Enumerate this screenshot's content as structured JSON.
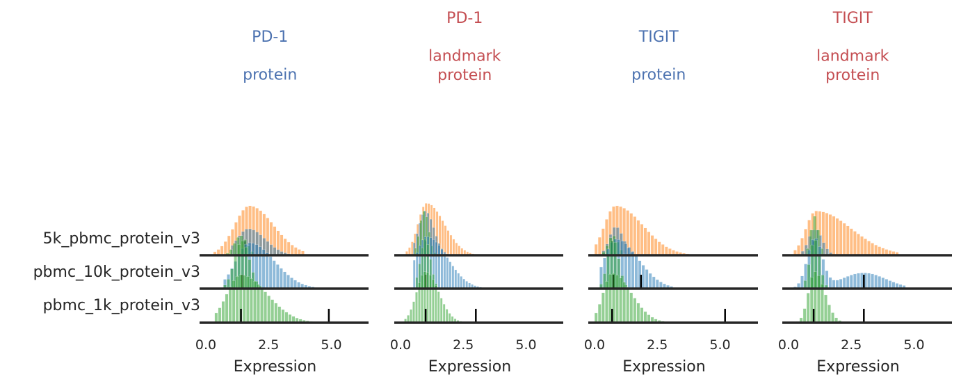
{
  "figure": {
    "row_labels": [
      "5k_pbmc_protein_v3",
      "pbmc_10k_protein_v3",
      "pbmc_1k_protein_v3"
    ],
    "colors": {
      "title_blue": "#4c72b0",
      "title_red": "#c44e52",
      "hist_orange": "#ff7f0e",
      "hist_blue": "#1f77b4",
      "hist_green": "#2ca02c",
      "baseline": "#262626",
      "marker": "#000000",
      "text": "#262626"
    }
  },
  "chart_data": [
    {
      "type": "histogram",
      "title_lines": [
        "PD-1",
        "",
        "protein"
      ],
      "title_color": "blue",
      "xlabel": "Expression",
      "xticks": [
        "0.0",
        "2.5",
        "5.0"
      ],
      "xlim": [
        -0.3,
        6.8
      ],
      "bin_width": 0.14,
      "series": [
        {
          "color": "orange",
          "row": 0,
          "mode": "gauss",
          "mu": 1.75,
          "sigma": 0.6,
          "lo": 0.3,
          "hi": 3.9,
          "peak": 0.95,
          "skew": 1.6,
          "marker_x": 1.55
        },
        {
          "color": "blue",
          "row": 0,
          "mode": "gauss",
          "mu": 1.7,
          "sigma": 0.45,
          "lo": 1.0,
          "hi": 3.3,
          "peak": 0.51,
          "skew": 1.5,
          "marker_x": null
        },
        {
          "color": "green",
          "row": 0,
          "mode": "gauss",
          "mu": 1.4,
          "sigma": 0.25,
          "lo": 0.8,
          "hi": 2.0,
          "peak": 0.38,
          "skew": 1.0,
          "marker_x": null
        },
        {
          "color": "blue",
          "row": 1,
          "mode": "gauss",
          "mu": 1.75,
          "sigma": 0.55,
          "lo": 0.7,
          "hi": 4.3,
          "peak": 0.88,
          "skew": 1.8,
          "marker_x": 1.45
        },
        {
          "color": "green",
          "row": 1,
          "mode": "gauss",
          "mu": 1.45,
          "sigma": 0.3,
          "lo": 0.7,
          "hi": 2.2,
          "peak": 0.92,
          "skew": 1.0,
          "marker_x": null
        },
        {
          "color": "green",
          "row": 2,
          "mode": "gauss",
          "mu": 1.4,
          "sigma": 0.55,
          "lo": 0.35,
          "hi": 5.1,
          "peak": 0.92,
          "skew": 1.9,
          "marker_x": 1.4
        }
      ],
      "outlier_markers": [
        {
          "row": 2,
          "x": 4.9
        }
      ]
    },
    {
      "type": "histogram",
      "title_lines": [
        "PD-1",
        "",
        "landmark",
        "protein"
      ],
      "title_color": "red",
      "xlabel": "Expression",
      "xticks": [
        "0.0",
        "2.5",
        "5.0"
      ],
      "xlim": [
        -0.3,
        6.8
      ],
      "bin_width": 0.11,
      "series": [
        {
          "color": "orange",
          "row": 0,
          "mode": "gauss",
          "mu": 1.05,
          "sigma": 0.35,
          "lo": 0.2,
          "hi": 3.1,
          "peak": 1.0,
          "skew": 2.0,
          "marker_x": 1.0
        },
        {
          "color": "blue",
          "row": 0,
          "mode": "gauss",
          "mu": 1.0,
          "sigma": 0.28,
          "lo": 0.5,
          "hi": 2.0,
          "peak": 0.85,
          "skew": 1.2,
          "marker_x": null
        },
        {
          "color": "green",
          "row": 0,
          "mode": "gauss",
          "mu": 0.95,
          "sigma": 0.18,
          "lo": 0.55,
          "hi": 1.6,
          "peak": 0.85,
          "skew": 1.0,
          "marker_x": null
        },
        {
          "color": "blue",
          "row": 1,
          "mode": "gauss",
          "mu": 1.05,
          "sigma": 0.45,
          "lo": 0.5,
          "hi": 3.2,
          "peak": 1.0,
          "skew": 1.8,
          "marker_x": 1.0
        },
        {
          "color": "green",
          "row": 1,
          "mode": "gauss",
          "mu": 1.0,
          "sigma": 0.2,
          "lo": 0.6,
          "hi": 1.7,
          "peak": 0.95,
          "skew": 1.0,
          "marker_x": null
        },
        {
          "color": "green",
          "row": 2,
          "mode": "gauss",
          "mu": 1.0,
          "sigma": 0.35,
          "lo": 0.15,
          "hi": 2.4,
          "peak": 0.98,
          "skew": 1.5,
          "marker_x": 1.0
        }
      ],
      "outlier_markers": [
        {
          "row": 2,
          "x": 3.0
        }
      ]
    },
    {
      "type": "histogram",
      "title_lines": [
        "TIGIT",
        "",
        "protein"
      ],
      "title_color": "blue",
      "xlabel": "Expression",
      "xticks": [
        "0.0",
        "2.5",
        "5.0"
      ],
      "xlim": [
        -0.3,
        6.8
      ],
      "bin_width": 0.14,
      "series": [
        {
          "color": "orange",
          "row": 0,
          "mode": "gauss",
          "mu": 0.85,
          "sigma": 0.45,
          "lo": 0.0,
          "hi": 3.9,
          "peak": 0.95,
          "skew": 2.4,
          "marker_x": 0.7
        },
        {
          "color": "blue",
          "row": 0,
          "mode": "gauss",
          "mu": 0.85,
          "sigma": 0.25,
          "lo": 0.3,
          "hi": 1.6,
          "peak": 0.55,
          "skew": 1.2,
          "marker_x": null
        },
        {
          "color": "green",
          "row": 0,
          "mode": "gauss",
          "mu": 0.75,
          "sigma": 0.2,
          "lo": 0.3,
          "hi": 1.3,
          "peak": 0.38,
          "skew": 1.0,
          "marker_x": null
        },
        {
          "color": "blue",
          "row": 1,
          "mode": "gauss",
          "mu": 0.85,
          "sigma": 0.45,
          "lo": 0.2,
          "hi": 3.1,
          "peak": 0.95,
          "skew": 2.0,
          "marker_x": 1.85
        },
        {
          "color": "green",
          "row": 1,
          "mode": "gauss",
          "mu": 0.75,
          "sigma": 0.22,
          "lo": 0.2,
          "hi": 1.3,
          "peak": 0.95,
          "skew": 1.0,
          "marker_x": 0.75
        },
        {
          "color": "green",
          "row": 2,
          "mode": "gauss",
          "mu": 0.7,
          "sigma": 0.35,
          "lo": 0.0,
          "hi": 3.5,
          "peak": 0.95,
          "skew": 2.2,
          "marker_x": 0.7
        }
      ],
      "outlier_markers": [
        {
          "row": 2,
          "x": 5.2
        }
      ]
    },
    {
      "type": "histogram",
      "title_lines": [
        "TIGIT",
        "",
        "landmark",
        "protein"
      ],
      "title_color": "red",
      "xlabel": "Expression",
      "xticks": [
        "0.0",
        "2.5",
        "5.0"
      ],
      "xlim": [
        -0.3,
        6.8
      ],
      "bin_width": 0.14,
      "series": [
        {
          "color": "orange",
          "row": 0,
          "mode": "gauss",
          "mu": 1.1,
          "sigma": 0.4,
          "lo": 0.2,
          "hi": 4.3,
          "peak": 0.85,
          "skew": 3.5,
          "marker_x": 1.0
        },
        {
          "color": "blue",
          "row": 0,
          "mode": "gauss",
          "mu": 1.05,
          "sigma": 0.25,
          "lo": 0.5,
          "hi": 1.7,
          "peak": 0.5,
          "skew": 1.2,
          "marker_x": null
        },
        {
          "color": "green",
          "row": 0,
          "mode": "gauss",
          "mu": 1.05,
          "sigma": 0.15,
          "lo": 0.7,
          "hi": 1.4,
          "peak": 0.75,
          "skew": 1.0,
          "marker_x": null
        },
        {
          "color": "blue",
          "row": 1,
          "mode": "bimodal",
          "mu": 1.05,
          "sigma": 0.3,
          "mu2": 3.0,
          "sigma2": 0.9,
          "w2": 0.32,
          "lo": 0.2,
          "hi": 4.6,
          "peak": 0.95,
          "skew": 1.0,
          "marker_x": 3.0
        },
        {
          "color": "green",
          "row": 1,
          "mode": "gauss",
          "mu": 1.05,
          "sigma": 0.2,
          "lo": 0.6,
          "hi": 1.6,
          "peak": 0.95,
          "skew": 1.0,
          "marker_x": null
        },
        {
          "color": "green",
          "row": 2,
          "mode": "gauss",
          "mu": 1.05,
          "sigma": 0.25,
          "lo": 0.3,
          "hi": 2.1,
          "peak": 0.98,
          "skew": 1.6,
          "marker_x": 1.0
        }
      ],
      "outlier_markers": [
        {
          "row": 2,
          "x": 3.0
        }
      ]
    }
  ]
}
